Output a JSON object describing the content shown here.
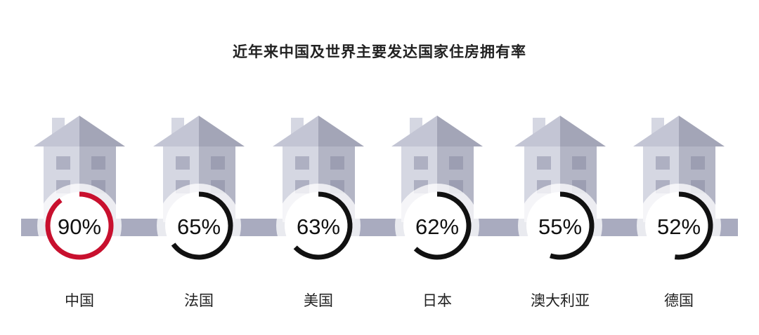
{
  "chart_data": {
    "type": "donut-infographic",
    "title": "近年来中国及世界主要发达国家住房拥有率",
    "categories": [
      "中国",
      "法国",
      "美国",
      "日本",
      "澳大利亚",
      "德国"
    ],
    "values": [
      90,
      65,
      63,
      62,
      55,
      52
    ],
    "labels": [
      "90%",
      "65%",
      "63%",
      "62%",
      "55%",
      "52%"
    ],
    "unit": "%",
    "colors": {
      "highlight": "#c8102e",
      "default": "#111111",
      "house_light": "#d5d7e2",
      "house_dark": "#b3b5c5",
      "road": "#a9abbf"
    }
  }
}
